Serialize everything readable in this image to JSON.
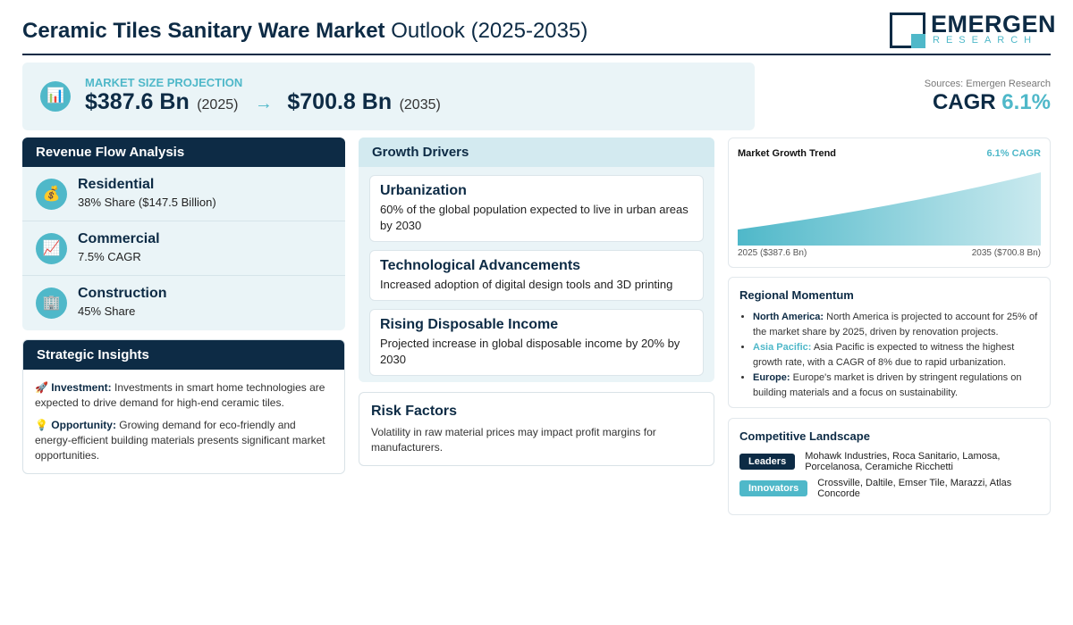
{
  "header": {
    "title_bold": "Ceramic Tiles Sanitary Ware Market",
    "title_rest": "Outlook (2025-2035)",
    "logo_name": "EMERGEN",
    "logo_sub": "RESEARCH"
  },
  "projection": {
    "icon": "bar-chart-icon",
    "label": "MARKET SIZE PROJECTION",
    "start_value": "$387.6 Bn",
    "start_year": "(2025)",
    "arrow": "→",
    "end_value": "$700.8 Bn",
    "end_year": "(2035)"
  },
  "summary": {
    "sources": "Sources: Emergen Research",
    "cagr_label": "CAGR",
    "cagr_value": "6.1%"
  },
  "revenue": {
    "title": "Revenue Flow Analysis",
    "items": [
      {
        "icon": "money-bag-icon",
        "glyph": "💰",
        "name": "Residential",
        "value": "38% Share ($147.5 Billion)"
      },
      {
        "icon": "trend-up-icon",
        "glyph": "📈",
        "name": "Commercial",
        "value": "7.5% CAGR"
      },
      {
        "icon": "building-icon",
        "glyph": "🏢",
        "name": "Construction",
        "value": "45% Share"
      }
    ]
  },
  "insights": {
    "title": "Strategic Insights",
    "items": [
      {
        "glyph": "🚀",
        "label": "Investment:",
        "text": "Investments in smart home technologies are expected to drive demand for high-end ceramic tiles."
      },
      {
        "glyph": "💡",
        "label": "Opportunity:",
        "text": "Growing demand for eco-friendly and energy-efficient building materials presents significant market opportunities."
      }
    ]
  },
  "drivers": {
    "title": "Growth Drivers",
    "items": [
      {
        "title": "Urbanization",
        "desc": "60% of the global population expected to live in urban areas by 2030"
      },
      {
        "title": "Technological Advancements",
        "desc": "Increased adoption of digital design tools and 3D printing"
      },
      {
        "title": "Rising Disposable Income",
        "desc": "Projected increase in global disposable income by 20% by 2030"
      }
    ]
  },
  "risk": {
    "title": "Risk Factors",
    "desc": "Volatility in raw material prices may impact profit margins for manufacturers."
  },
  "trend": {
    "title": "Market Growth Trend",
    "cagr": "6.1% CAGR",
    "start_label": "2025 ($387.6 Bn)",
    "end_label": "2035 ($700.8 Bn)",
    "fill_color": "#4fb8c9"
  },
  "chart_data": {
    "type": "area",
    "title": "Market Growth Trend",
    "x": [
      2025,
      2035
    ],
    "values": [
      387.6,
      700.8
    ]
  },
  "regional": {
    "title": "Regional Momentum",
    "items": [
      {
        "region": "North America:",
        "text": "North America is projected to account for 25% of the market share by 2025, driven by renovation projects."
      },
      {
        "region": "Asia Pacific:",
        "text": "Asia Pacific is expected to witness the highest growth rate, with a CAGR of 8% due to rapid urbanization."
      },
      {
        "region": "Europe:",
        "text": "Europe's market is driven by stringent regulations on building materials and a focus on sustainability."
      }
    ]
  },
  "competitive": {
    "title": "Competitive Landscape",
    "leaders_label": "Leaders",
    "leaders": "Mohawk Industries, Roca Sanitario, Lamosa, Porcelanosa, Ceramiche Ricchetti",
    "innovators_label": "Innovators",
    "innovators": "Crossville, Daltile, Emser Tile, Marazzi, Atlas Concorde"
  },
  "colors": {
    "navy": "#0d2b45",
    "teal": "#4fb8c9",
    "panel_bg": "#eaf4f7"
  }
}
